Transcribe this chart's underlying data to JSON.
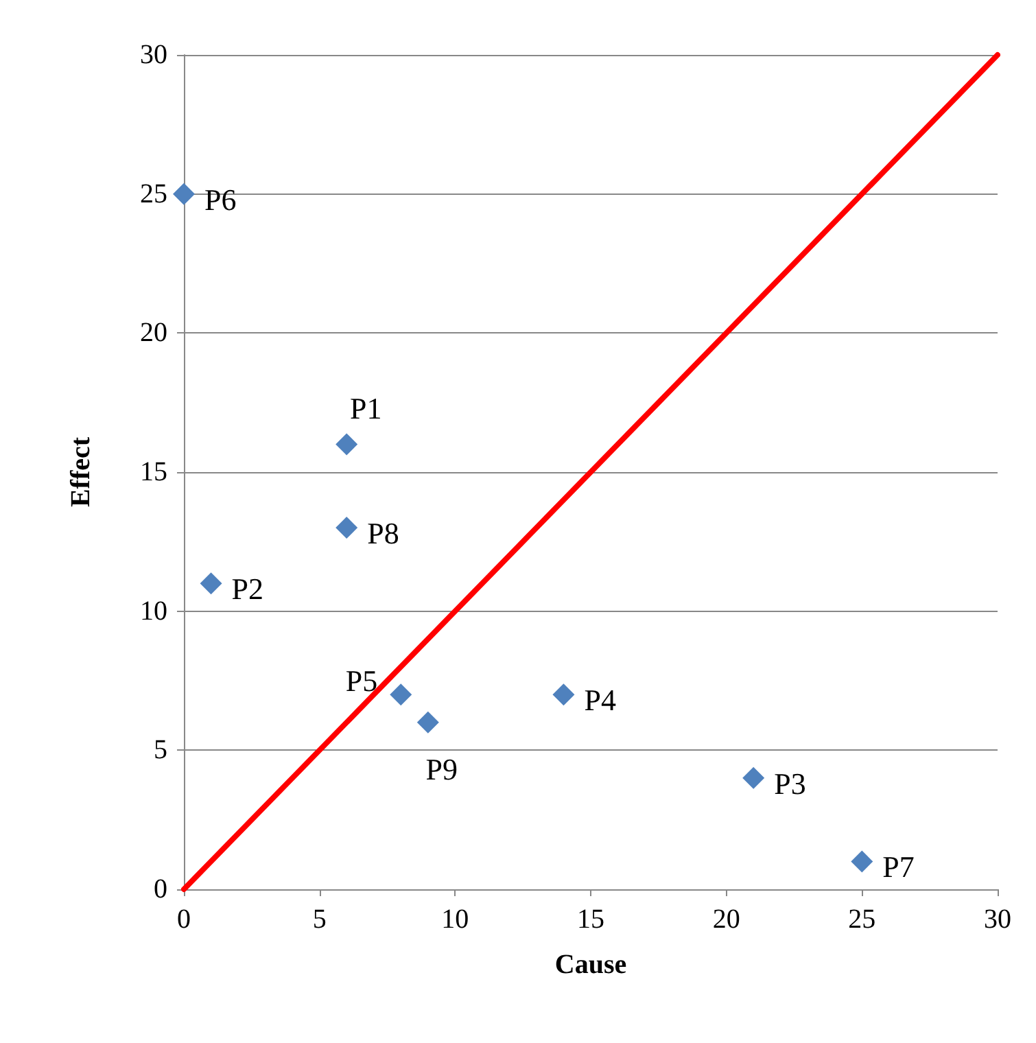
{
  "chart_data": {
    "type": "scatter",
    "xlabel": "Cause",
    "ylabel": "Effect",
    "series": [
      {
        "color": "#4f81bd",
        "x": [
          6,
          1,
          21,
          14,
          8,
          0,
          25,
          6,
          9
        ],
        "values": [
          16,
          11,
          4,
          7,
          7,
          25,
          1,
          13,
          6
        ],
        "value_labels": [
          "P1",
          "P2",
          "P3",
          "P4",
          "P5",
          "P6",
          "P7",
          "P8",
          "P9"
        ],
        "marker": "diamond"
      },
      {
        "type": "line",
        "color": "#ff0000",
        "x": [
          0,
          30
        ],
        "values": [
          0,
          30
        ],
        "marker": "none",
        "line_style": "solid"
      }
    ],
    "xlim": [
      0,
      30
    ],
    "xticks": [
      0,
      5,
      10,
      15,
      20,
      25,
      30
    ],
    "ylim": [
      0,
      30
    ],
    "yticks": [
      0,
      5,
      10,
      15,
      20,
      25,
      30
    ],
    "grid": "y"
  }
}
